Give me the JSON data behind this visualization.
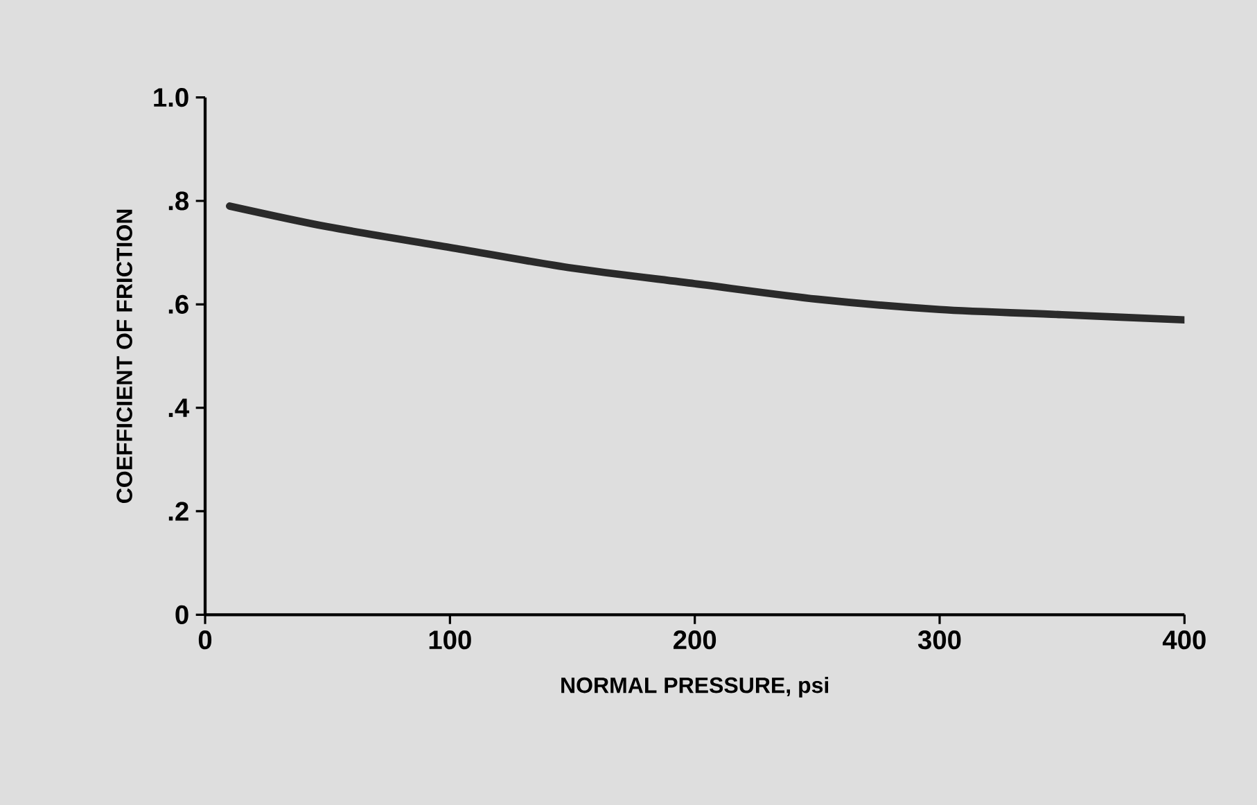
{
  "chart_data": {
    "type": "line",
    "xlabel": "NORMAL PRESSURE, psi",
    "ylabel": "COEFFICIENT OF FRICTION",
    "x": [
      10,
      50,
      100,
      150,
      200,
      250,
      300,
      350,
      400
    ],
    "series": [
      {
        "color": "#2a2a2a",
        "values": [
          0.79,
          0.75,
          0.71,
          0.67,
          0.64,
          0.61,
          0.59,
          0.58,
          0.57
        ]
      }
    ],
    "xlim": [
      0,
      400
    ],
    "ylim": [
      0,
      1.0
    ],
    "xticks": [
      0,
      100,
      200,
      300,
      400
    ],
    "yticks": [
      0,
      {
        "value": 0.2,
        "label": ".2"
      },
      {
        "value": 0.4,
        "label": ".4"
      },
      {
        "value": 0.6,
        "label": ".6"
      },
      {
        "value": 0.8,
        "label": ".8"
      },
      {
        "value": 1.0,
        "label": "1.0"
      }
    ],
    "grid": false,
    "marker": "none",
    "line_style": "solid"
  }
}
